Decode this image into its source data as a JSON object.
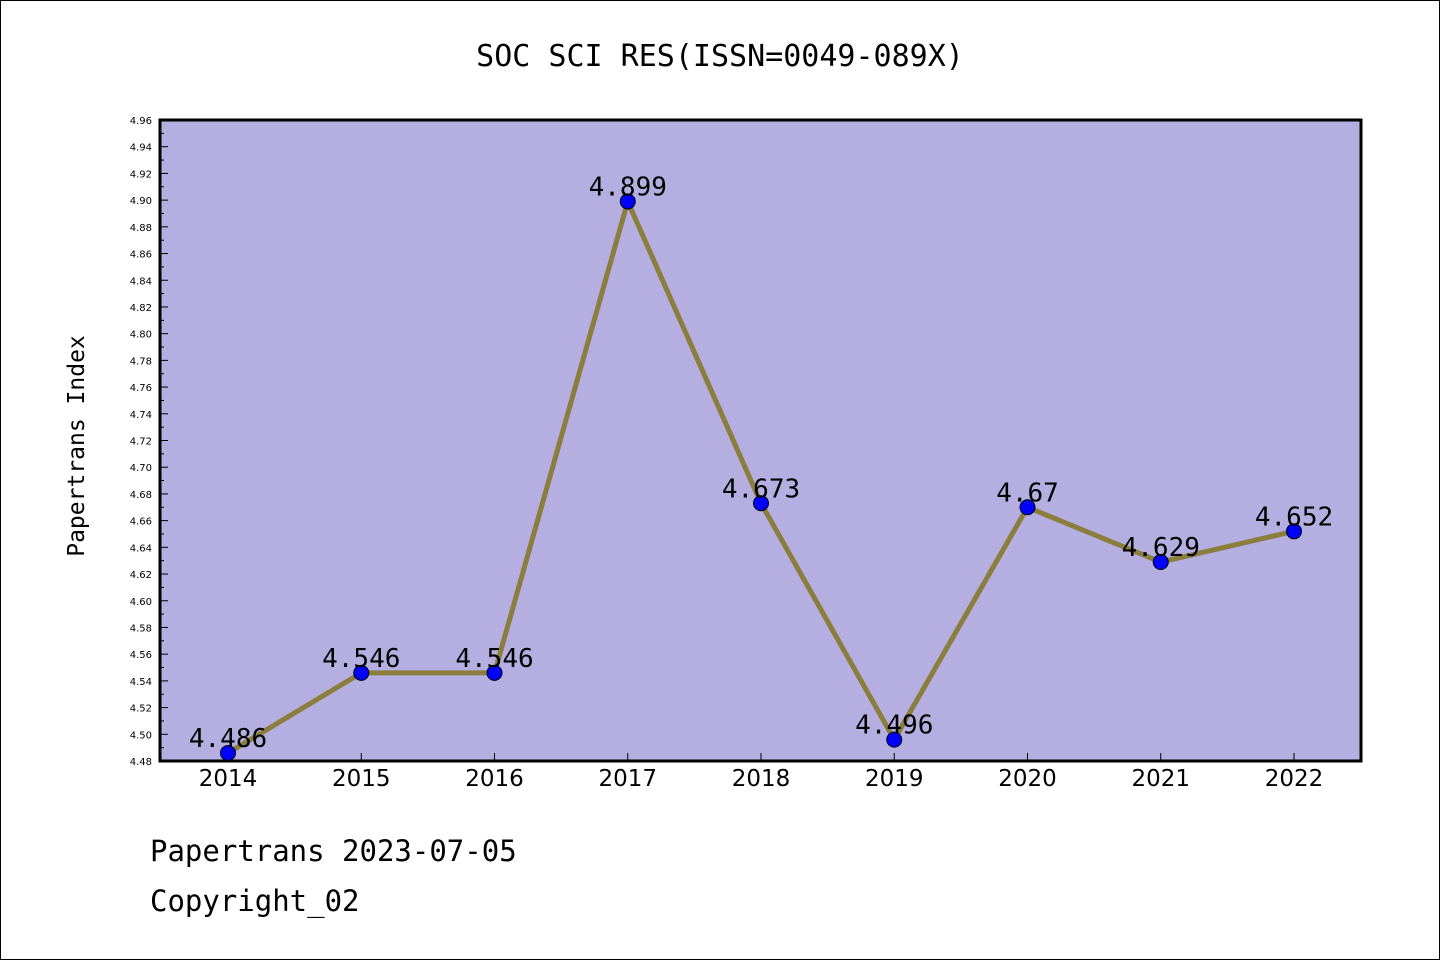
{
  "chart_data": {
    "type": "line",
    "title": "SOC SCI RES(ISSN=0049-089X)",
    "ylabel": "Papertrans Index",
    "xlabel": "",
    "categories": [
      "2014",
      "2015",
      "2016",
      "2017",
      "2018",
      "2019",
      "2020",
      "2021",
      "2022"
    ],
    "values": [
      4.486,
      4.546,
      4.546,
      4.899,
      4.673,
      4.496,
      4.67,
      4.629,
      4.652
    ],
    "value_labels": [
      "4.486",
      "4.546",
      "4.546",
      "4.899",
      "4.673",
      "4.496",
      "4.67",
      "4.629",
      "4.652"
    ],
    "ylim": [
      4.48,
      4.96
    ],
    "ytick_step": 0.02,
    "grid": false,
    "colors": {
      "plot_background": "#b4aee1",
      "line": "#8b7d3c",
      "marker": "#0000ff"
    }
  },
  "footer": {
    "line1": "Papertrans 2023-07-05",
    "line2": "Copyright_02"
  }
}
